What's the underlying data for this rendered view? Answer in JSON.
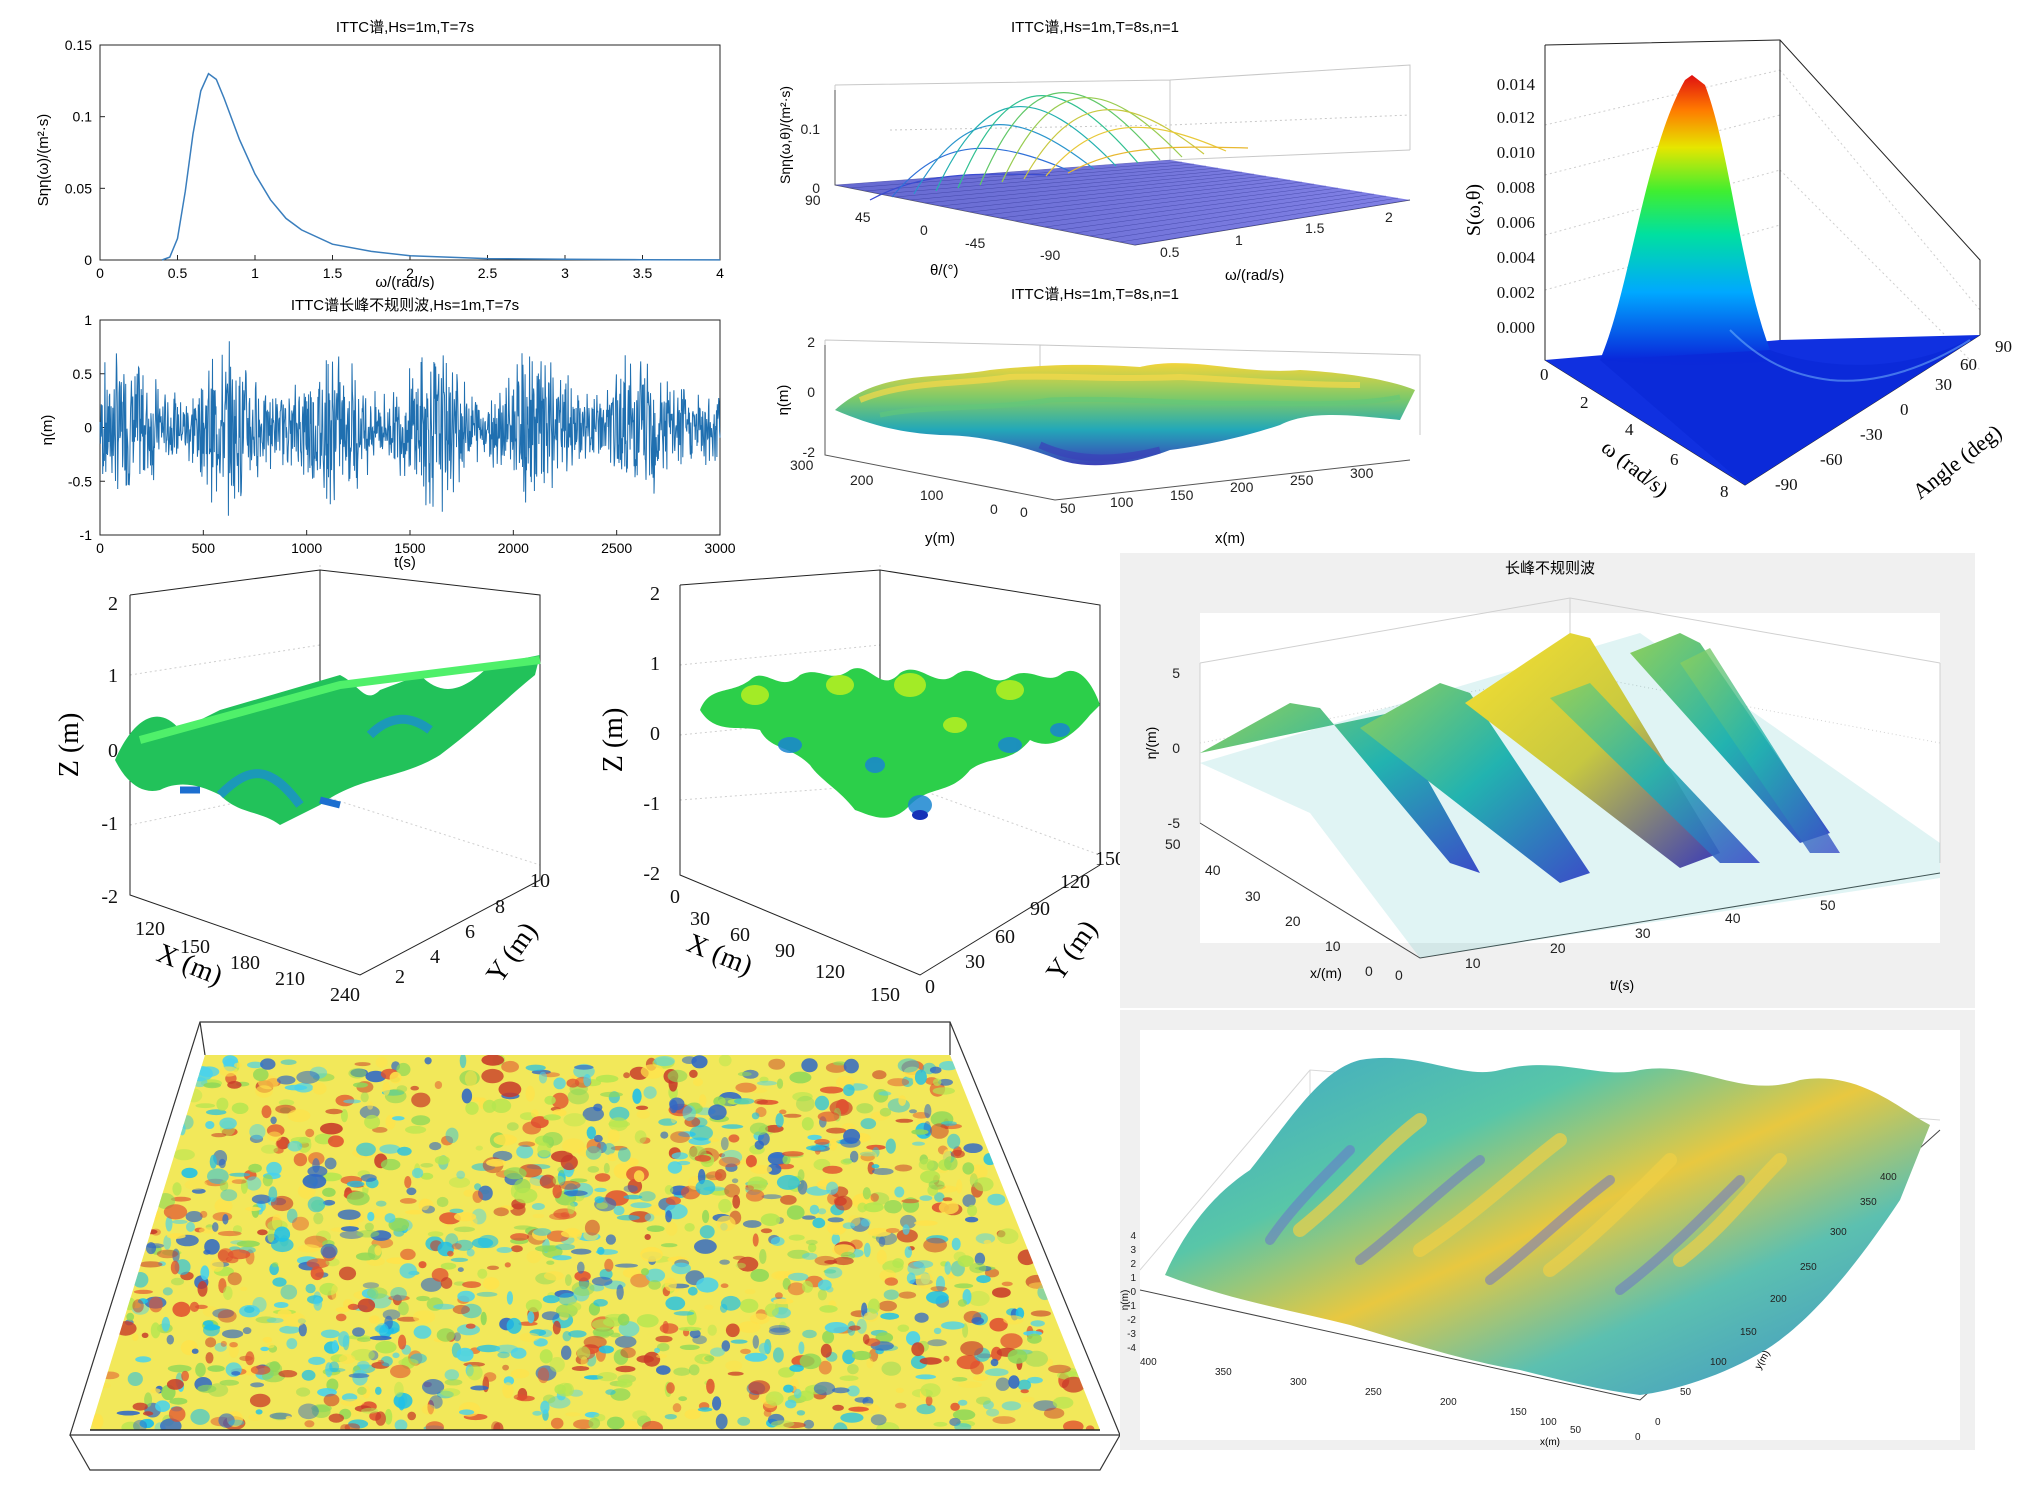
{
  "panels": {
    "spectrum1d": {
      "title": "ITTC谱,Hs=1m,T=7s",
      "xlabel": "ω/(rad/s)",
      "ylabel": "Sηη(ω)/(m²·s)"
    },
    "wave_series": {
      "title": "ITTC谱长峰不规则波,Hs=1m,T=7s",
      "xlabel": "t(s)",
      "ylabel": "η(m)"
    },
    "spectrum_dir": {
      "title": "ITTC谱,Hs=1m,T=8s,n=1",
      "zlabel": "Sηη(ω,θ)/(m²·s)",
      "xlabel": "ω/(rad/s)",
      "ylabel": "θ/(°)",
      "x_ticks": [
        "0.5",
        "1",
        "1.5",
        "2"
      ],
      "y_ticks": [
        "90",
        "45",
        "0",
        "-45",
        "-90"
      ],
      "z_ticks": [
        "0",
        "0.1"
      ]
    },
    "surface_dir": {
      "title": "ITTC谱,Hs=1m,T=8s,n=1",
      "zlabel": "η(m)",
      "xlabel": "x(m)",
      "ylabel": "y(m)",
      "x_ticks": [
        "0",
        "50",
        "100",
        "150",
        "200",
        "250",
        "300"
      ],
      "y_ticks": [
        "300",
        "200",
        "100",
        "0"
      ],
      "z_ticks": [
        "2",
        "0",
        "-2"
      ]
    },
    "spectrum_color": {
      "zlabel": "S(ω,θ)",
      "xlabel": "ω (rad/s)",
      "ylabel": "Angle (deg)",
      "z_ticks": [
        "0.014",
        "0.012",
        "0.010",
        "0.008",
        "0.006",
        "0.004",
        "0.002",
        "0.000"
      ],
      "x_ticks": [
        "0",
        "2",
        "4",
        "6",
        "8"
      ],
      "y_ticks": [
        "-90",
        "-60",
        "-30",
        "0",
        "30",
        "60",
        "90"
      ]
    },
    "longcrest_surface": {
      "zlabel": "Z (m)",
      "xlabel": "X (m)",
      "ylabel": "Y (m)",
      "z_ticks": [
        "2",
        "1",
        "0",
        "-1",
        "-2"
      ],
      "x_ticks": [
        "120",
        "150",
        "180",
        "210",
        "240"
      ],
      "y_ticks": [
        "2",
        "4",
        "6",
        "8",
        "10"
      ]
    },
    "shortcrest_surface": {
      "zlabel": "Z (m)",
      "xlabel": "X (m)",
      "ylabel": "Y (m)",
      "z_ticks": [
        "2",
        "1",
        "0",
        "-1",
        "-2"
      ],
      "x_ticks": [
        "0",
        "30",
        "60",
        "90",
        "120",
        "150"
      ],
      "y_ticks": [
        "0",
        "30",
        "60",
        "90",
        "120",
        "150"
      ]
    },
    "longcrest_time": {
      "title": "长峰不规则波",
      "zlabel": "η/(m)",
      "xlabel": "x/(m)",
      "ylabel": "t/(s)",
      "z_ticks": [
        "5",
        "0",
        "-5"
      ],
      "x_ticks": [
        "50",
        "40",
        "30",
        "20",
        "10",
        "0"
      ],
      "y_ticks": [
        "0",
        "10",
        "20",
        "30",
        "40",
        "50"
      ]
    },
    "ocean_field": {},
    "shortcrest_large": {
      "zlabel": "η(m)",
      "xlabel": "x(m)",
      "ylabel": "y(m)",
      "z_ticks": [
        "4",
        "3",
        "2",
        "1",
        "0",
        "-1",
        "-2",
        "-3",
        "-4"
      ],
      "x_ticks": [
        "400",
        "350",
        "300",
        "250",
        "200",
        "150",
        "100",
        "50",
        "0"
      ],
      "y_ticks": [
        "0",
        "50",
        "100",
        "150",
        "200",
        "250",
        "300",
        "350",
        "400"
      ]
    }
  },
  "chart_data": [
    {
      "type": "line",
      "title": "ITTC谱,Hs=1m,T=7s",
      "xlabel": "ω/(rad/s)",
      "ylabel": "Sηη(ω)/(m²·s)",
      "xlim": [
        0,
        4
      ],
      "ylim": [
        0,
        0.15
      ],
      "x_ticks": [
        0,
        0.5,
        1,
        1.5,
        2,
        2.5,
        3,
        3.5,
        4
      ],
      "y_ticks": [
        0,
        0.05,
        0.1,
        0.15
      ],
      "x": [
        0.4,
        0.45,
        0.5,
        0.55,
        0.6,
        0.65,
        0.7,
        0.75,
        0.8,
        0.9,
        1.0,
        1.1,
        1.2,
        1.3,
        1.5,
        1.75,
        2.0,
        2.5,
        3.0,
        3.5,
        4.0
      ],
      "y": [
        0.0,
        0.002,
        0.015,
        0.048,
        0.088,
        0.118,
        0.13,
        0.126,
        0.113,
        0.084,
        0.06,
        0.042,
        0.029,
        0.021,
        0.011,
        0.006,
        0.003,
        0.001,
        0.0005,
        0.0002,
        0.0001
      ],
      "color": "#3a7ebd"
    },
    {
      "type": "line",
      "title": "ITTC谱长峰不规则波,Hs=1m,T=7s",
      "xlabel": "t(s)",
      "ylabel": "η(m)",
      "xlim": [
        0,
        3000
      ],
      "ylim": [
        -1,
        1
      ],
      "x_ticks": [
        0,
        500,
        1000,
        1500,
        2000,
        2500,
        3000
      ],
      "y_ticks": [
        -1,
        -0.5,
        0,
        0.5,
        1
      ],
      "series_summary": "irregular wave elevation, amplitude about ±0.7 m over 0–3000 s",
      "color": "#1f6fb0"
    }
  ]
}
